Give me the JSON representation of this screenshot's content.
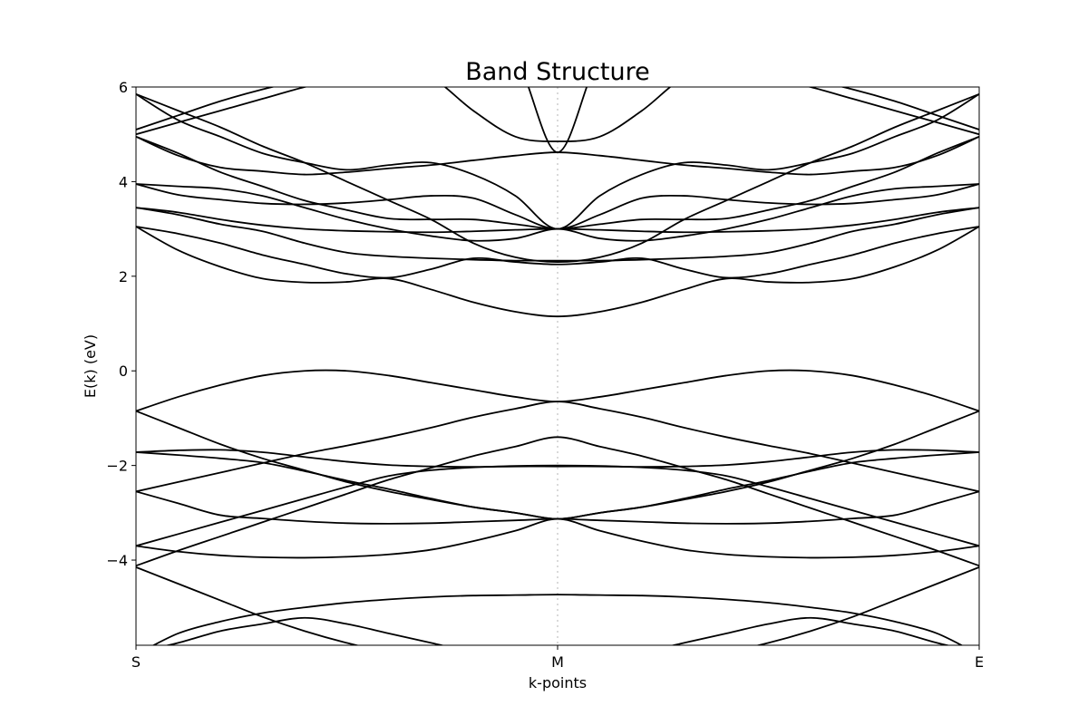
{
  "chart_data": {
    "type": "line",
    "title": "Band Structure",
    "xlabel": "k-points",
    "ylabel": "E(k) (eV)",
    "ylim": [
      -5.8,
      6.0
    ],
    "xlim": [
      0,
      1
    ],
    "grid": false,
    "legend": "none",
    "x_ticks": [
      {
        "label": "S",
        "x": 0.0
      },
      {
        "label": "M",
        "x": 0.5
      },
      {
        "label": "E",
        "x": 1.0
      }
    ],
    "y_ticks": [
      {
        "value": -4,
        "label": "−4"
      },
      {
        "value": -2,
        "label": "−2"
      },
      {
        "value": 0,
        "label": "0"
      },
      {
        "value": 2,
        "label": "2"
      },
      {
        "value": 4,
        "label": "4"
      },
      {
        "value": 6,
        "label": "6"
      }
    ],
    "x": [
      0,
      0.05,
      0.1,
      0.15,
      0.2,
      0.25,
      0.3,
      0.35,
      0.4,
      0.45,
      0.5,
      0.55,
      0.6,
      0.65,
      0.7,
      0.75,
      0.8,
      0.85,
      0.9,
      0.95,
      1.0
    ],
    "series": [
      {
        "values": [
          -5.95,
          -5.75,
          -5.5,
          -5.35,
          -5.22,
          -5.35,
          -5.55,
          -5.75,
          -5.95,
          -6.1,
          -6.2,
          -6.1,
          -5.95,
          -5.75,
          -5.55,
          -5.35,
          -5.22,
          -5.35,
          -5.5,
          -5.75,
          -5.95
        ]
      },
      {
        "values": [
          -4.15,
          -4.5,
          -4.85,
          -5.2,
          -5.5,
          -5.75,
          -5.95,
          -6.1,
          -6.2,
          -6.25,
          -6.3,
          -6.25,
          -6.2,
          -6.1,
          -5.95,
          -5.75,
          -5.5,
          -5.2,
          -4.85,
          -4.5,
          -4.15
        ]
      },
      {
        "values": [
          -6.0,
          -5.55,
          -5.3,
          -5.12,
          -5.0,
          -4.9,
          -4.83,
          -4.78,
          -4.75,
          -4.74,
          -4.73,
          -4.74,
          -4.75,
          -4.78,
          -4.83,
          -4.9,
          -5.0,
          -5.12,
          -5.3,
          -5.55,
          -6.0
        ]
      },
      {
        "values": [
          -3.7,
          -3.82,
          -3.9,
          -3.94,
          -3.95,
          -3.93,
          -3.88,
          -3.78,
          -3.6,
          -3.38,
          -3.13,
          -3.38,
          -3.6,
          -3.78,
          -3.88,
          -3.93,
          -3.95,
          -3.94,
          -3.9,
          -3.82,
          -3.7
        ]
      },
      {
        "values": [
          -4.12,
          -3.8,
          -3.5,
          -3.2,
          -2.9,
          -2.6,
          -2.3,
          -2.05,
          -1.8,
          -1.6,
          -1.4,
          -1.6,
          -1.8,
          -2.05,
          -2.3,
          -2.6,
          -2.9,
          -3.2,
          -3.5,
          -3.8,
          -4.12
        ]
      },
      {
        "values": [
          -3.7,
          -3.45,
          -3.2,
          -2.95,
          -2.7,
          -2.45,
          -2.22,
          -2.1,
          -2.04,
          -2.01,
          -2.0,
          -2.01,
          -2.04,
          -2.1,
          -2.22,
          -2.45,
          -2.7,
          -2.95,
          -3.2,
          -3.45,
          -3.7
        ]
      },
      {
        "values": [
          -2.55,
          -2.8,
          -3.05,
          -3.12,
          -3.18,
          -3.22,
          -3.23,
          -3.22,
          -3.19,
          -3.16,
          -3.13,
          -3.16,
          -3.19,
          -3.22,
          -3.23,
          -3.22,
          -3.18,
          -3.12,
          -3.05,
          -2.8,
          -2.55
        ]
      },
      {
        "values": [
          -2.55,
          -2.35,
          -2.15,
          -1.95,
          -1.75,
          -1.58,
          -1.4,
          -1.2,
          -0.98,
          -0.8,
          -0.65,
          -0.8,
          -0.98,
          -1.2,
          -1.4,
          -1.58,
          -1.75,
          -1.95,
          -2.15,
          -2.35,
          -2.55
        ]
      },
      {
        "values": [
          -1.72,
          -1.68,
          -1.67,
          -1.72,
          -1.82,
          -1.92,
          -1.99,
          -2.02,
          -2.03,
          -2.02,
          -2.02,
          -2.02,
          -2.03,
          -2.02,
          -1.99,
          -1.92,
          -1.82,
          -1.72,
          -1.67,
          -1.68,
          -1.72
        ]
      },
      {
        "values": [
          -1.72,
          -1.78,
          -1.85,
          -1.94,
          -2.12,
          -2.32,
          -2.5,
          -2.7,
          -2.88,
          -3.0,
          -3.13,
          -3.0,
          -2.88,
          -2.7,
          -2.5,
          -2.32,
          -2.12,
          -1.94,
          -1.85,
          -1.78,
          -1.72
        ]
      },
      {
        "values": [
          -0.85,
          -1.2,
          -1.55,
          -1.85,
          -2.1,
          -2.35,
          -2.55,
          -2.72,
          -2.88,
          -3.0,
          -3.13,
          -3.0,
          -2.88,
          -2.72,
          -2.55,
          -2.35,
          -2.1,
          -1.85,
          -1.55,
          -1.2,
          -0.85
        ]
      },
      {
        "values": [
          -0.85,
          -0.55,
          -0.3,
          -0.1,
          0.0,
          0.0,
          -0.1,
          -0.25,
          -0.4,
          -0.55,
          -0.65,
          -0.55,
          -0.4,
          -0.25,
          -0.1,
          0.0,
          0.0,
          -0.1,
          -0.3,
          -0.55,
          -0.85
        ]
      },
      {
        "values": [
          3.05,
          2.55,
          2.2,
          1.95,
          1.87,
          1.88,
          1.95,
          1.72,
          1.45,
          1.25,
          1.15,
          1.25,
          1.45,
          1.72,
          1.95,
          1.88,
          1.87,
          1.95,
          2.2,
          2.55,
          3.05
        ]
      },
      {
        "values": [
          3.05,
          2.9,
          2.7,
          2.45,
          2.25,
          2.05,
          1.97,
          2.15,
          2.38,
          2.3,
          2.25,
          2.3,
          2.38,
          2.15,
          1.97,
          2.05,
          2.25,
          2.45,
          2.7,
          2.9,
          3.05
        ]
      },
      {
        "values": [
          3.45,
          3.3,
          3.1,
          2.95,
          2.7,
          2.5,
          2.42,
          2.38,
          2.35,
          2.33,
          2.33,
          2.33,
          2.35,
          2.38,
          2.42,
          2.5,
          2.7,
          2.95,
          3.1,
          3.3,
          3.45
        ]
      },
      {
        "values": [
          3.45,
          3.35,
          3.2,
          3.08,
          3.0,
          2.96,
          2.94,
          2.93,
          2.95,
          2.98,
          3.0,
          2.98,
          2.95,
          2.93,
          2.94,
          2.96,
          3.0,
          3.08,
          3.2,
          3.35,
          3.45
        ]
      },
      {
        "values": [
          3.95,
          3.72,
          3.62,
          3.54,
          3.52,
          3.55,
          3.62,
          3.7,
          3.65,
          3.3,
          3.0,
          3.3,
          3.65,
          3.7,
          3.62,
          3.55,
          3.52,
          3.54,
          3.62,
          3.72,
          3.95
        ]
      },
      {
        "values": [
          3.95,
          3.9,
          3.85,
          3.7,
          3.45,
          3.2,
          3.0,
          2.85,
          2.75,
          2.8,
          3.0,
          2.8,
          2.75,
          2.85,
          3.0,
          3.2,
          3.45,
          3.7,
          3.85,
          3.9,
          3.95
        ]
      },
      {
        "values": [
          4.95,
          4.55,
          4.3,
          4.22,
          4.15,
          4.2,
          4.28,
          4.35,
          4.45,
          4.55,
          4.62,
          4.55,
          4.45,
          4.35,
          4.28,
          4.2,
          4.15,
          4.22,
          4.3,
          4.55,
          4.95
        ]
      },
      {
        "values": [
          4.95,
          4.6,
          4.2,
          3.9,
          3.6,
          3.4,
          3.22,
          3.2,
          3.2,
          3.1,
          3.0,
          3.1,
          3.2,
          3.2,
          3.22,
          3.4,
          3.6,
          3.9,
          4.2,
          4.6,
          4.95
        ]
      },
      {
        "values": [
          5.1,
          5.4,
          5.7,
          5.95,
          6.15,
          6.3,
          6.4,
          6.2,
          5.5,
          4.95,
          4.85,
          4.95,
          5.5,
          6.2,
          6.4,
          6.3,
          6.15,
          5.95,
          5.7,
          5.4,
          5.1
        ]
      },
      {
        "values": [
          5.85,
          5.3,
          4.95,
          4.6,
          4.4,
          4.25,
          4.35,
          4.4,
          4.15,
          3.7,
          3.0,
          3.7,
          4.15,
          4.4,
          4.35,
          4.25,
          4.4,
          4.6,
          4.95,
          5.3,
          5.85
        ]
      },
      {
        "values": [
          5.85,
          5.5,
          5.15,
          4.75,
          4.4,
          4.0,
          3.6,
          3.2,
          2.7,
          2.4,
          2.3,
          2.4,
          2.7,
          3.2,
          3.6,
          4.0,
          4.4,
          4.75,
          5.15,
          5.5,
          5.85
        ]
      },
      {
        "values": [
          5.0,
          5.25,
          5.5,
          5.75,
          6.0,
          6.2,
          6.4,
          6.5,
          6.6,
          6.6,
          4.62,
          6.6,
          6.6,
          6.5,
          6.4,
          6.2,
          6.0,
          5.75,
          5.5,
          5.25,
          5.0
        ]
      }
    ]
  }
}
